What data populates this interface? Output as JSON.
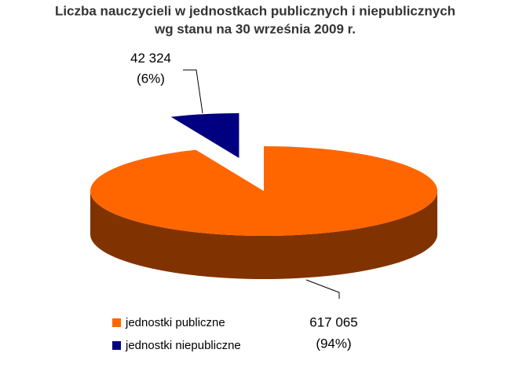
{
  "chart_data": {
    "type": "pie3d",
    "title": [
      "Liczba nauczycieli w jednostkach publicznych i niepublicznych",
      "wg stanu na 30 września 2009 r."
    ],
    "categories": [
      "jednostki publiczne",
      "jednostki niepubliczne"
    ],
    "values": [
      617065,
      42324
    ],
    "value_labels": [
      "617 065",
      "42 324"
    ],
    "percent_labels": [
      "(94%)",
      "(6%)"
    ],
    "colors": [
      "#ff6600",
      "#000080"
    ],
    "side_colors": [
      "#803300",
      "#000040"
    ],
    "exploded": [
      false,
      true
    ]
  }
}
